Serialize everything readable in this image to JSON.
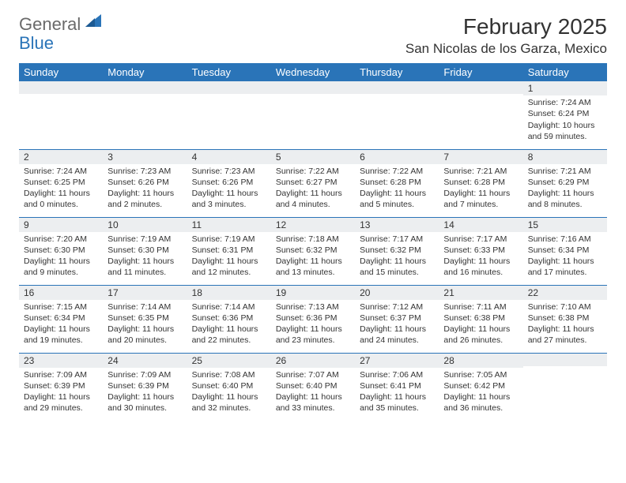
{
  "logo": {
    "general": "General",
    "blue": "Blue",
    "shape_color": "#2a74b8"
  },
  "title": "February 2025",
  "location": "San Nicolas de los Garza, Mexico",
  "header_bg": "#2a74b8",
  "header_fg": "#ffffff",
  "daynum_bg": "#eceef0",
  "border_color": "#2a74b8",
  "weekdays": [
    "Sunday",
    "Monday",
    "Tuesday",
    "Wednesday",
    "Thursday",
    "Friday",
    "Saturday"
  ],
  "weeks": [
    [
      null,
      null,
      null,
      null,
      null,
      null,
      {
        "n": "1",
        "sunrise": "7:24 AM",
        "sunset": "6:24 PM",
        "daylight": "10 hours and 59 minutes."
      }
    ],
    [
      {
        "n": "2",
        "sunrise": "7:24 AM",
        "sunset": "6:25 PM",
        "daylight": "11 hours and 0 minutes."
      },
      {
        "n": "3",
        "sunrise": "7:23 AM",
        "sunset": "6:26 PM",
        "daylight": "11 hours and 2 minutes."
      },
      {
        "n": "4",
        "sunrise": "7:23 AM",
        "sunset": "6:26 PM",
        "daylight": "11 hours and 3 minutes."
      },
      {
        "n": "5",
        "sunrise": "7:22 AM",
        "sunset": "6:27 PM",
        "daylight": "11 hours and 4 minutes."
      },
      {
        "n": "6",
        "sunrise": "7:22 AM",
        "sunset": "6:28 PM",
        "daylight": "11 hours and 5 minutes."
      },
      {
        "n": "7",
        "sunrise": "7:21 AM",
        "sunset": "6:28 PM",
        "daylight": "11 hours and 7 minutes."
      },
      {
        "n": "8",
        "sunrise": "7:21 AM",
        "sunset": "6:29 PM",
        "daylight": "11 hours and 8 minutes."
      }
    ],
    [
      {
        "n": "9",
        "sunrise": "7:20 AM",
        "sunset": "6:30 PM",
        "daylight": "11 hours and 9 minutes."
      },
      {
        "n": "10",
        "sunrise": "7:19 AM",
        "sunset": "6:30 PM",
        "daylight": "11 hours and 11 minutes."
      },
      {
        "n": "11",
        "sunrise": "7:19 AM",
        "sunset": "6:31 PM",
        "daylight": "11 hours and 12 minutes."
      },
      {
        "n": "12",
        "sunrise": "7:18 AM",
        "sunset": "6:32 PM",
        "daylight": "11 hours and 13 minutes."
      },
      {
        "n": "13",
        "sunrise": "7:17 AM",
        "sunset": "6:32 PM",
        "daylight": "11 hours and 15 minutes."
      },
      {
        "n": "14",
        "sunrise": "7:17 AM",
        "sunset": "6:33 PM",
        "daylight": "11 hours and 16 minutes."
      },
      {
        "n": "15",
        "sunrise": "7:16 AM",
        "sunset": "6:34 PM",
        "daylight": "11 hours and 17 minutes."
      }
    ],
    [
      {
        "n": "16",
        "sunrise": "7:15 AM",
        "sunset": "6:34 PM",
        "daylight": "11 hours and 19 minutes."
      },
      {
        "n": "17",
        "sunrise": "7:14 AM",
        "sunset": "6:35 PM",
        "daylight": "11 hours and 20 minutes."
      },
      {
        "n": "18",
        "sunrise": "7:14 AM",
        "sunset": "6:36 PM",
        "daylight": "11 hours and 22 minutes."
      },
      {
        "n": "19",
        "sunrise": "7:13 AM",
        "sunset": "6:36 PM",
        "daylight": "11 hours and 23 minutes."
      },
      {
        "n": "20",
        "sunrise": "7:12 AM",
        "sunset": "6:37 PM",
        "daylight": "11 hours and 24 minutes."
      },
      {
        "n": "21",
        "sunrise": "7:11 AM",
        "sunset": "6:38 PM",
        "daylight": "11 hours and 26 minutes."
      },
      {
        "n": "22",
        "sunrise": "7:10 AM",
        "sunset": "6:38 PM",
        "daylight": "11 hours and 27 minutes."
      }
    ],
    [
      {
        "n": "23",
        "sunrise": "7:09 AM",
        "sunset": "6:39 PM",
        "daylight": "11 hours and 29 minutes."
      },
      {
        "n": "24",
        "sunrise": "7:09 AM",
        "sunset": "6:39 PM",
        "daylight": "11 hours and 30 minutes."
      },
      {
        "n": "25",
        "sunrise": "7:08 AM",
        "sunset": "6:40 PM",
        "daylight": "11 hours and 32 minutes."
      },
      {
        "n": "26",
        "sunrise": "7:07 AM",
        "sunset": "6:40 PM",
        "daylight": "11 hours and 33 minutes."
      },
      {
        "n": "27",
        "sunrise": "7:06 AM",
        "sunset": "6:41 PM",
        "daylight": "11 hours and 35 minutes."
      },
      {
        "n": "28",
        "sunrise": "7:05 AM",
        "sunset": "6:42 PM",
        "daylight": "11 hours and 36 minutes."
      },
      null
    ]
  ],
  "labels": {
    "sunrise": "Sunrise: ",
    "sunset": "Sunset: ",
    "daylight": "Daylight: "
  }
}
